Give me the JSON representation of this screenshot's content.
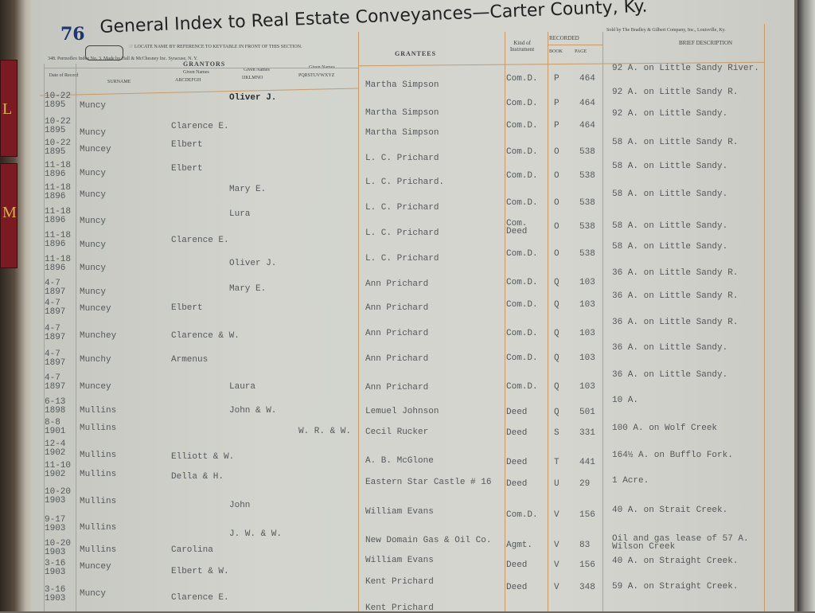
{
  "header": {
    "page_number": "76",
    "title": "General Index to Real Estate Conveyances—Carter County, Ky.",
    "instruction": "☞ LOCATE NAME BY REFERENCE TO KEYTABLE IN FRONT OF THIS SECTION.",
    "maker": "348. Permoflex Index No. 3. Made by Hall & McChesney Inc. Syracuse, N. Y.",
    "seller": "Sold by The Bradley & Gilbert Company, Inc., Louisville, Ky."
  },
  "columns": {
    "date": "Date of Record",
    "grantors": "GRANTORS",
    "surname": "SURNAME",
    "given_label": "Given Names",
    "given1": "ABCDEFGH",
    "given2": "IJKLMNO",
    "given3": "PQRSTUVWXYZ",
    "grantees": "GRANTEES",
    "kind": "Kind of Instrument",
    "recorded": "RECORDED",
    "book": "BOOK",
    "page": "PAGE",
    "description": "BRIEF DESCRIPTION"
  },
  "rows": [
    {
      "date": "10-22 1895",
      "surname": "Muncy",
      "given": "Oliver J.",
      "given_col": 2,
      "grantee": "Martha Simpson",
      "kind": "Com.D.",
      "book": "P",
      "page": "464",
      "description": "92 A. on Little Sandy River."
    },
    {
      "date": "10-22 1895",
      "surname": "Muncy",
      "given": "Clarence E.",
      "given_col": 1,
      "grantee": "Martha Simpson",
      "kind": "Com.D.",
      "book": "P",
      "page": "464",
      "description": "92 A. on Little Sandy R."
    },
    {
      "date": "10-22 1895",
      "surname": "Muncey",
      "given": "Elbert",
      "given_col": 1,
      "grantee": "Martha Simpson",
      "kind": "Com.D.",
      "book": "P",
      "page": "464",
      "description": "92 A. on Little Sandy."
    },
    {
      "date": "11-18 1896",
      "surname": "Muncy",
      "given": "Elbert",
      "given_col": 1,
      "grantee": "L. C. Prichard",
      "kind": "Com.D.",
      "book": "O",
      "page": "538",
      "description": "58 A. on Little Sandy R."
    },
    {
      "date": "11-18 1896",
      "surname": "Muncy",
      "given": "Mary E.",
      "given_col": 2,
      "grantee": "L. C. Prichard.",
      "kind": "Com.D.",
      "book": "O",
      "page": "538",
      "description": "58 A. on Little Sandy."
    },
    {
      "date": "11-18 1896",
      "surname": "Muncy",
      "given": "Lura",
      "given_col": 2,
      "grantee": "L. C. Prichard",
      "kind": "Com.D.",
      "book": "O",
      "page": "538",
      "description": "58 A. on Little Sandy."
    },
    {
      "date": "11-18 1896",
      "surname": "Muncy",
      "given": "Clarence E.",
      "given_col": 1,
      "grantee": "L. C. Prichard",
      "kind": "Com. Deed",
      "book": "O",
      "page": "538",
      "description": "58 A. on Little Sandy."
    },
    {
      "date": "11-18 1896",
      "surname": "Muncy",
      "given": "Oliver J.",
      "given_col": 2,
      "grantee": "L. C. Prichard",
      "kind": "Com.D.",
      "book": "O",
      "page": "538",
      "description": "58 A. on Little Sandy."
    },
    {
      "date": "4-7 1897",
      "surname": "Muncy",
      "given": "Mary E.",
      "given_col": 2,
      "grantee": "Ann Prichard",
      "kind": "Com.D.",
      "book": "Q",
      "page": "103",
      "description": "36 A. on Little Sandy R."
    },
    {
      "date": "4-7 1897",
      "surname": "Muncey",
      "given": "Elbert",
      "given_col": 1,
      "grantee": "Ann Prichard",
      "kind": "Com.D.",
      "book": "Q",
      "page": "103",
      "description": "36 A. on Little Sandy R."
    },
    {
      "date": "4-7 1897",
      "surname": "Munchey",
      "given": "Clarence & W.",
      "given_col": 1,
      "grantee": "Ann Prichard",
      "kind": "Com.D.",
      "book": "Q",
      "page": "103",
      "description": "36 A. on Little Sandy R."
    },
    {
      "date": "4-7 1897",
      "surname": "Munchy",
      "given": "Armenus",
      "given_col": 1,
      "grantee": "Ann Prichard",
      "kind": "Com.D.",
      "book": "Q",
      "page": "103",
      "description": "36 A. on Little Sandy."
    },
    {
      "date": "4-7 1897",
      "surname": "Muncey",
      "given": "Laura",
      "given_col": 2,
      "grantee": "Ann Prichard",
      "kind": "Com.D.",
      "book": "Q",
      "page": "103",
      "description": "36 A. on Little Sandy."
    },
    {
      "date": "6-13 1898",
      "surname": "Mullins",
      "given": "John & W.",
      "given_col": 2,
      "grantee": "Lemuel Johnson",
      "kind": "Deed",
      "book": "Q",
      "page": "501",
      "description": "10 A."
    },
    {
      "date": "8-8 1901",
      "surname": "Mullins",
      "given": "W. R. & W.",
      "given_col": 3,
      "grantee": "Cecil Rucker",
      "kind": "Deed",
      "book": "S",
      "page": "331",
      "description": "100 A. on Wolf Creek"
    },
    {
      "date": "12-4 1902",
      "surname": "Mullins",
      "given": "Elliott & W.",
      "given_col": 1,
      "grantee": "A. B. McGlone",
      "kind": "Deed",
      "book": "T",
      "page": "441",
      "description": "164½ A. on Bufflo Fork."
    },
    {
      "date": "11-10 1902",
      "surname": "Mullins",
      "given": "Della & H.",
      "given_col": 1,
      "grantee": "Eastern Star Castle # 16",
      "kind": "Deed",
      "book": "U",
      "page": "29",
      "description": "1 Acre."
    },
    {
      "date": "10-20 1903",
      "surname": "Mullins",
      "given": "John",
      "given_col": 2,
      "grantee": "William Evans",
      "kind": "Com.D.",
      "book": "V",
      "page": "156",
      "description": "40 A. on Strait Creek."
    },
    {
      "date": "9-17 1903",
      "surname": "Mullins",
      "given": "J. W. & W.",
      "given_col": 2,
      "grantee": "New Domain Gas & Oil Co.",
      "kind": "Agmt.",
      "book": "V",
      "page": "83",
      "description": "Oil and gas lease of 57 A. Wilson Creek"
    },
    {
      "date": "10-20 1903",
      "surname": "Mullins",
      "given": "Carolina",
      "given_col": 1,
      "grantee": "William Evans",
      "kind": "Deed",
      "book": "V",
      "page": "156",
      "description": "40 A. on Straight Creek."
    },
    {
      "date": "3-16 1903",
      "surname": "Muncey",
      "given": "Elbert & W.",
      "given_col": 1,
      "grantee": "Kent Prichard",
      "kind": "Deed",
      "book": "V",
      "page": "348",
      "description": "59 A. on Straight Creek."
    },
    {
      "date": "3-16 1903",
      "surname": "Muncy",
      "given": "Clarence E.",
      "given_col": 1,
      "grantee": "Kent Prichard",
      "kind": "",
      "book": "",
      "page": "",
      "description": ""
    }
  ],
  "colors": {
    "paper": "#d2d4cd",
    "rule": "#c99a67",
    "ink": "#54585a",
    "page_number": "#1f3570",
    "binding_tag": "#7a1a22"
  }
}
